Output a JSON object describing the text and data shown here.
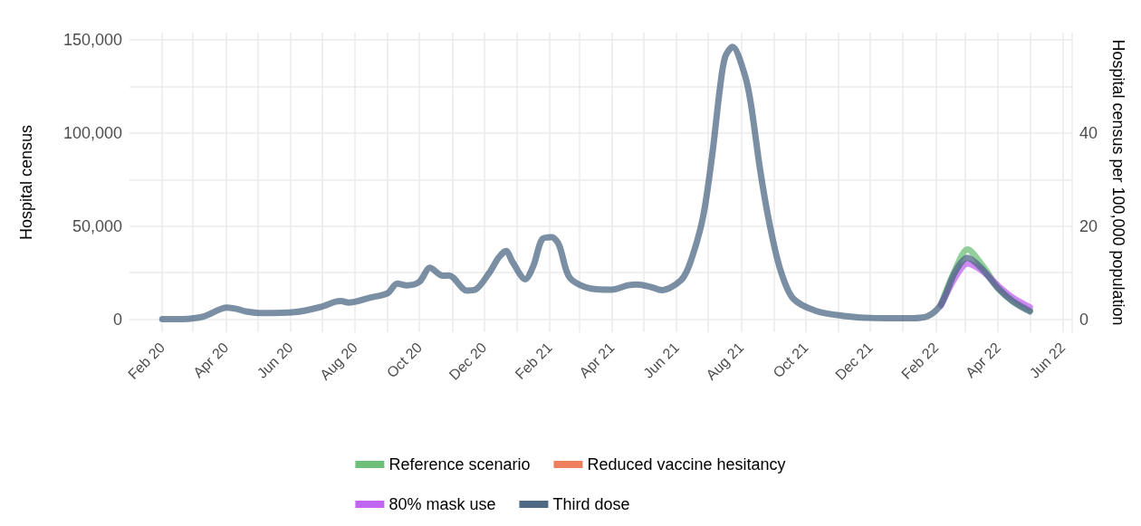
{
  "chart_data": {
    "type": "line",
    "ylabel": "Hospital census",
    "y2label": "Hospital census per 100,000 population",
    "x": [
      "2020-02-01",
      "2020-02-20",
      "2020-03-11",
      "2020-04-02",
      "2020-04-11",
      "2020-04-20",
      "2020-05-05",
      "2020-06-05",
      "2020-06-29",
      "2020-07-13",
      "2020-07-19",
      "2020-07-26",
      "2020-08-16",
      "2020-09-01",
      "2020-09-10",
      "2020-09-19",
      "2020-10-01",
      "2020-10-11",
      "2020-10-23",
      "2020-10-29",
      "2020-11-15",
      "2020-11-23",
      "2020-12-06",
      "2020-12-15",
      "2020-12-22",
      "2020-12-28",
      "2021-01-09",
      "2021-01-17",
      "2021-01-25",
      "2021-02-03",
      "2021-02-10",
      "2021-02-20",
      "2021-03-12",
      "2021-04-01",
      "2021-04-16",
      "2021-04-25",
      "2021-05-08",
      "2021-05-18",
      "2021-06-05",
      "2021-06-14",
      "2021-06-26",
      "2021-07-05",
      "2021-07-12",
      "2021-07-17",
      "2021-07-24",
      "2021-08-04",
      "2021-08-10",
      "2021-08-19",
      "2021-08-28",
      "2021-09-07",
      "2021-09-19",
      "2021-10-11",
      "2021-11-06",
      "2021-12-06",
      "2022-01-07",
      "2022-01-24",
      "2022-02-06",
      "2022-02-19",
      "2022-03-03",
      "2022-03-17",
      "2022-04-01",
      "2022-04-15",
      "2022-05-01"
    ],
    "series": [
      {
        "name": "Reference scenario",
        "color": "#6dbf7a",
        "values": [
          null,
          null,
          null,
          null,
          null,
          null,
          null,
          null,
          null,
          null,
          null,
          null,
          null,
          null,
          null,
          null,
          null,
          null,
          null,
          null,
          null,
          null,
          null,
          null,
          null,
          null,
          null,
          null,
          null,
          null,
          null,
          null,
          null,
          null,
          null,
          null,
          null,
          null,
          null,
          null,
          null,
          null,
          null,
          null,
          null,
          null,
          null,
          null,
          null,
          null,
          null,
          null,
          null,
          null,
          null,
          null,
          8200,
          26000,
          37500,
          29000,
          17000,
          10000,
          4800
        ]
      },
      {
        "name": "Reduced vaccine hesitancy",
        "color": "#ee8060",
        "values": [
          null,
          null,
          null,
          null,
          null,
          null,
          null,
          null,
          null,
          null,
          null,
          null,
          null,
          null,
          null,
          null,
          null,
          null,
          null,
          null,
          null,
          null,
          null,
          null,
          null,
          null,
          null,
          null,
          null,
          null,
          null,
          null,
          null,
          null,
          null,
          null,
          null,
          null,
          null,
          null,
          null,
          null,
          null,
          null,
          null,
          null,
          null,
          null,
          null,
          null,
          null,
          null,
          null,
          null,
          null,
          null,
          null,
          null,
          null,
          null,
          null,
          null,
          null
        ]
      },
      {
        "name": "80% mask use",
        "color": "#c066f0",
        "values": [
          null,
          null,
          null,
          null,
          null,
          null,
          null,
          null,
          null,
          null,
          null,
          null,
          null,
          null,
          null,
          null,
          null,
          null,
          null,
          null,
          null,
          null,
          null,
          null,
          null,
          null,
          null,
          null,
          null,
          null,
          null,
          null,
          null,
          null,
          null,
          null,
          null,
          null,
          null,
          null,
          null,
          null,
          null,
          null,
          null,
          null,
          null,
          null,
          null,
          null,
          null,
          null,
          null,
          null,
          null,
          null,
          7400,
          22000,
          30000,
          26000,
          18000,
          11500,
          6400
        ]
      },
      {
        "name": "Third dose",
        "color": "#4e6a84",
        "values": [
          0,
          100,
          1500,
          6200,
          5600,
          4200,
          3300,
          3800,
          6500,
          9300,
          9800,
          8900,
          11700,
          14000,
          19200,
          18200,
          20100,
          27600,
          23400,
          23500,
          15400,
          15900,
          24900,
          33200,
          36600,
          30800,
          21500,
          29100,
          43000,
          44100,
          39900,
          22400,
          16500,
          15900,
          18200,
          18700,
          17300,
          15600,
          20800,
          30400,
          54700,
          89300,
          123800,
          141000,
          146300,
          132400,
          116900,
          80500,
          51100,
          26900,
          11300,
          4400,
          1800,
          600,
          500,
          1500,
          7900,
          25000,
          33000,
          27000,
          16500,
          9500,
          4200
        ]
      }
    ],
    "xlim": [
      "2020-01-01",
      "2022-06-10"
    ],
    "xticks": [
      {
        "value": "2020-02-01",
        "label": "Feb 20"
      },
      {
        "value": "2020-03-01",
        "label": null
      },
      {
        "value": "2020-04-01",
        "label": "Apr 20"
      },
      {
        "value": "2020-05-01",
        "label": null
      },
      {
        "value": "2020-06-01",
        "label": "Jun 20"
      },
      {
        "value": "2020-07-01",
        "label": null
      },
      {
        "value": "2020-08-01",
        "label": "Aug 20"
      },
      {
        "value": "2020-09-01",
        "label": null
      },
      {
        "value": "2020-10-01",
        "label": "Oct 20"
      },
      {
        "value": "2020-11-01",
        "label": null
      },
      {
        "value": "2020-12-01",
        "label": "Dec 20"
      },
      {
        "value": "2021-01-01",
        "label": null
      },
      {
        "value": "2021-02-01",
        "label": "Feb 21"
      },
      {
        "value": "2021-03-01",
        "label": null
      },
      {
        "value": "2021-04-01",
        "label": "Apr 21"
      },
      {
        "value": "2021-05-01",
        "label": null
      },
      {
        "value": "2021-06-01",
        "label": "Jun 21"
      },
      {
        "value": "2021-07-01",
        "label": null
      },
      {
        "value": "2021-08-01",
        "label": "Aug 21"
      },
      {
        "value": "2021-09-01",
        "label": null
      },
      {
        "value": "2021-10-01",
        "label": "Oct 21"
      },
      {
        "value": "2021-11-01",
        "label": null
      },
      {
        "value": "2021-12-01",
        "label": "Dec 21"
      },
      {
        "value": "2022-01-01",
        "label": null
      },
      {
        "value": "2022-02-01",
        "label": "Feb 22"
      },
      {
        "value": "2022-03-01",
        "label": null
      },
      {
        "value": "2022-04-01",
        "label": "Apr 22"
      },
      {
        "value": "2022-05-01",
        "label": null
      },
      {
        "value": "2022-06-01",
        "label": "Jun 22"
      }
    ],
    "ylim": [
      -7000,
      154000
    ],
    "yticks": [
      0,
      {
        "value": 25000,
        "label": null
      },
      {
        "value": 50000,
        "label": "50,000"
      },
      {
        "value": 75000,
        "label": null
      },
      {
        "value": 100000,
        "label": "100,000"
      },
      {
        "value": 125000,
        "label": null
      },
      {
        "value": 150000,
        "label": "150,000"
      }
    ],
    "y2lim": [
      -2.8,
      61.5
    ],
    "y2ticks": [
      0,
      20,
      40
    ],
    "grid": true,
    "legend": "bottom",
    "marker": "none",
    "line_style": "solid"
  }
}
